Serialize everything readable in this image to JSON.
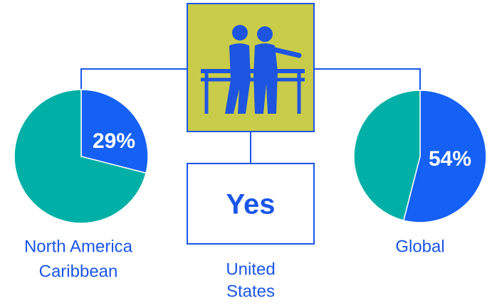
{
  "chart_data": [
    {
      "type": "pie",
      "title": [
        "North America",
        "Caribbean"
      ],
      "values": [
        29,
        71
      ],
      "value_labels": [
        "29%",
        null
      ],
      "colors": [
        "#1560f5",
        "#00b0a6"
      ]
    },
    {
      "type": "pie",
      "title": [
        "Global"
      ],
      "values": [
        54,
        46
      ],
      "value_labels": [
        "54%",
        null
      ],
      "colors": [
        "#1560f5",
        "#00b0a6"
      ]
    }
  ],
  "center": {
    "answer": "Yes",
    "label": [
      "United",
      "States"
    ]
  }
}
